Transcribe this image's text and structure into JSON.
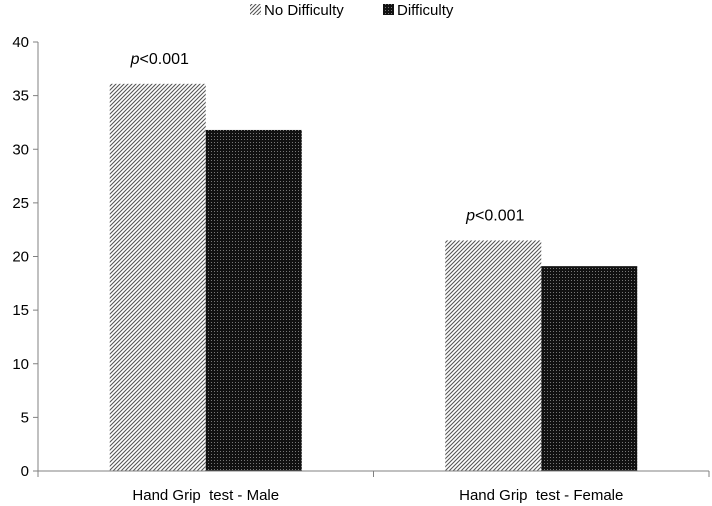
{
  "chart_data": {
    "type": "bar",
    "categories": [
      "Hand Grip  test - Male",
      "Hand Grip  test - Female"
    ],
    "series": [
      {
        "name": "No Difficulty",
        "values": [
          36.1,
          21.5
        ],
        "pattern": "diagonal-light"
      },
      {
        "name": "Difficulty",
        "values": [
          31.8,
          19.1
        ],
        "pattern": "crosshatch-dark"
      }
    ],
    "annotations": [
      {
        "category": 0,
        "prefix": "p",
        "text": "<0.001"
      },
      {
        "category": 1,
        "prefix": "p",
        "text": "<0.001"
      }
    ],
    "ylim": [
      0,
      40
    ],
    "yticks": [
      0,
      5,
      10,
      15,
      20,
      25,
      30,
      35,
      40
    ],
    "grid": false,
    "legend_position": "top-center",
    "colors": {
      "axis": "#808080",
      "no_difficulty_bg": "#ffffff",
      "no_difficulty_fg": "#555555",
      "difficulty_bg": "#111111",
      "difficulty_fg": "#777777"
    }
  }
}
